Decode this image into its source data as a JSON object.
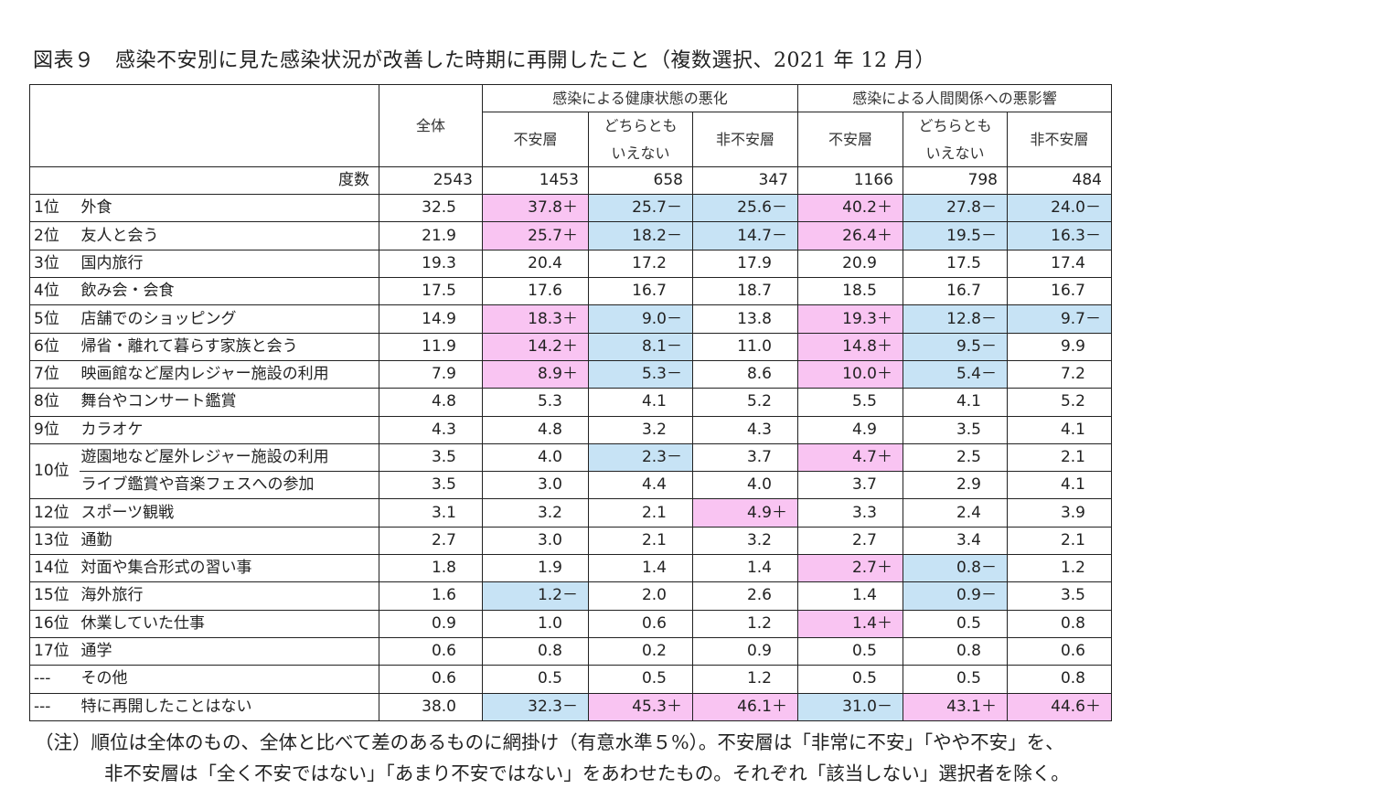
{
  "title": "図表９　感染不安別に見た感染状況が改善した時期に再開したこと（複数選択、2021 年 12 月）",
  "header": {
    "total_label": "全体",
    "group1": "感染による健康状態の悪化",
    "group2": "感染による人間関係への悪影響",
    "sub1": "不安層",
    "sub2_line1": "どちらとも",
    "sub2_line2": "いえない",
    "sub3": "非不安層",
    "freq_label": "度数",
    "freq": [
      "2543",
      "1453",
      "658",
      "347",
      "1166",
      "798",
      "484"
    ]
  },
  "rows": [
    {
      "rank": "1位",
      "item": "外食",
      "total": "32.5",
      "cells": [
        {
          "v": "37.8",
          "s": "＋"
        },
        {
          "v": "25.7",
          "s": "－"
        },
        {
          "v": "25.6",
          "s": "－"
        },
        {
          "v": "40.2",
          "s": "＋"
        },
        {
          "v": "27.8",
          "s": "－"
        },
        {
          "v": "24.0",
          "s": "－"
        }
      ]
    },
    {
      "rank": "2位",
      "item": "友人と会う",
      "total": "21.9",
      "cells": [
        {
          "v": "25.7",
          "s": "＋"
        },
        {
          "v": "18.2",
          "s": "－"
        },
        {
          "v": "14.7",
          "s": "－"
        },
        {
          "v": "26.4",
          "s": "＋"
        },
        {
          "v": "19.5",
          "s": "－"
        },
        {
          "v": "16.3",
          "s": "－"
        }
      ]
    },
    {
      "rank": "3位",
      "item": "国内旅行",
      "total": "19.3",
      "cells": [
        {
          "v": "20.4",
          "s": ""
        },
        {
          "v": "17.2",
          "s": ""
        },
        {
          "v": "17.9",
          "s": ""
        },
        {
          "v": "20.9",
          "s": ""
        },
        {
          "v": "17.5",
          "s": ""
        },
        {
          "v": "17.4",
          "s": ""
        }
      ]
    },
    {
      "rank": "4位",
      "item": "飲み会・会食",
      "total": "17.5",
      "cells": [
        {
          "v": "17.6",
          "s": ""
        },
        {
          "v": "16.7",
          "s": ""
        },
        {
          "v": "18.7",
          "s": ""
        },
        {
          "v": "18.5",
          "s": ""
        },
        {
          "v": "16.7",
          "s": ""
        },
        {
          "v": "16.7",
          "s": ""
        }
      ]
    },
    {
      "rank": "5位",
      "item": "店舗でのショッピング",
      "total": "14.9",
      "cells": [
        {
          "v": "18.3",
          "s": "＋"
        },
        {
          "v": "9.0",
          "s": "－"
        },
        {
          "v": "13.8",
          "s": ""
        },
        {
          "v": "19.3",
          "s": "＋"
        },
        {
          "v": "12.8",
          "s": "－"
        },
        {
          "v": "9.7",
          "s": "－"
        }
      ]
    },
    {
      "rank": "6位",
      "item": "帰省・離れて暮らす家族と会う",
      "total": "11.9",
      "cells": [
        {
          "v": "14.2",
          "s": "＋"
        },
        {
          "v": "8.1",
          "s": "－"
        },
        {
          "v": "11.0",
          "s": ""
        },
        {
          "v": "14.8",
          "s": "＋"
        },
        {
          "v": "9.5",
          "s": "－"
        },
        {
          "v": "9.9",
          "s": ""
        }
      ]
    },
    {
      "rank": "7位",
      "item": "映画館など屋内レジャー施設の利用",
      "total": "7.9",
      "cells": [
        {
          "v": "8.9",
          "s": "＋"
        },
        {
          "v": "5.3",
          "s": "－"
        },
        {
          "v": "8.6",
          "s": ""
        },
        {
          "v": "10.0",
          "s": "＋"
        },
        {
          "v": "5.4",
          "s": "－"
        },
        {
          "v": "7.2",
          "s": ""
        }
      ]
    },
    {
      "rank": "8位",
      "item": "舞台やコンサート鑑賞",
      "total": "4.8",
      "cells": [
        {
          "v": "5.3",
          "s": ""
        },
        {
          "v": "4.1",
          "s": ""
        },
        {
          "v": "5.2",
          "s": ""
        },
        {
          "v": "5.5",
          "s": ""
        },
        {
          "v": "4.1",
          "s": ""
        },
        {
          "v": "5.2",
          "s": ""
        }
      ]
    },
    {
      "rank": "9位",
      "item": "カラオケ",
      "total": "4.3",
      "cells": [
        {
          "v": "4.8",
          "s": ""
        },
        {
          "v": "3.2",
          "s": ""
        },
        {
          "v": "4.3",
          "s": ""
        },
        {
          "v": "4.9",
          "s": ""
        },
        {
          "v": "3.5",
          "s": ""
        },
        {
          "v": "4.1",
          "s": ""
        }
      ]
    },
    {
      "rank": "10位",
      "item": "遊園地など屋外レジャー施設の利用",
      "total": "3.5",
      "cells": [
        {
          "v": "4.0",
          "s": ""
        },
        {
          "v": "2.3",
          "s": "－"
        },
        {
          "v": "3.7",
          "s": ""
        },
        {
          "v": "4.7",
          "s": "＋"
        },
        {
          "v": "2.5",
          "s": ""
        },
        {
          "v": "2.1",
          "s": ""
        }
      ]
    },
    {
      "rank": "",
      "item": "ライブ鑑賞や音楽フェスへの参加",
      "total": "3.5",
      "cells": [
        {
          "v": "3.0",
          "s": ""
        },
        {
          "v": "4.4",
          "s": ""
        },
        {
          "v": "4.0",
          "s": ""
        },
        {
          "v": "3.7",
          "s": ""
        },
        {
          "v": "2.9",
          "s": ""
        },
        {
          "v": "4.1",
          "s": ""
        }
      ]
    },
    {
      "rank": "12位",
      "item": "スポーツ観戦",
      "total": "3.1",
      "cells": [
        {
          "v": "3.2",
          "s": ""
        },
        {
          "v": "2.1",
          "s": ""
        },
        {
          "v": "4.9",
          "s": "＋"
        },
        {
          "v": "3.3",
          "s": ""
        },
        {
          "v": "2.4",
          "s": ""
        },
        {
          "v": "3.9",
          "s": ""
        }
      ]
    },
    {
      "rank": "13位",
      "item": "通勤",
      "total": "2.7",
      "cells": [
        {
          "v": "3.0",
          "s": ""
        },
        {
          "v": "2.1",
          "s": ""
        },
        {
          "v": "3.2",
          "s": ""
        },
        {
          "v": "2.7",
          "s": ""
        },
        {
          "v": "3.4",
          "s": ""
        },
        {
          "v": "2.1",
          "s": ""
        }
      ]
    },
    {
      "rank": "14位",
      "item": "対面や集合形式の習い事",
      "total": "1.8",
      "cells": [
        {
          "v": "1.9",
          "s": ""
        },
        {
          "v": "1.4",
          "s": ""
        },
        {
          "v": "1.4",
          "s": ""
        },
        {
          "v": "2.7",
          "s": "＋"
        },
        {
          "v": "0.8",
          "s": "－"
        },
        {
          "v": "1.2",
          "s": ""
        }
      ]
    },
    {
      "rank": "15位",
      "item": "海外旅行",
      "total": "1.6",
      "cells": [
        {
          "v": "1.2",
          "s": "－"
        },
        {
          "v": "2.0",
          "s": ""
        },
        {
          "v": "2.6",
          "s": ""
        },
        {
          "v": "1.4",
          "s": ""
        },
        {
          "v": "0.9",
          "s": "－"
        },
        {
          "v": "3.5",
          "s": ""
        }
      ]
    },
    {
      "rank": "16位",
      "item": "休業していた仕事",
      "total": "0.9",
      "cells": [
        {
          "v": "1.0",
          "s": ""
        },
        {
          "v": "0.6",
          "s": ""
        },
        {
          "v": "1.2",
          "s": ""
        },
        {
          "v": "1.4",
          "s": "＋"
        },
        {
          "v": "0.5",
          "s": ""
        },
        {
          "v": "0.8",
          "s": ""
        }
      ]
    },
    {
      "rank": "17位",
      "item": "通学",
      "total": "0.6",
      "cells": [
        {
          "v": "0.8",
          "s": ""
        },
        {
          "v": "0.2",
          "s": ""
        },
        {
          "v": "0.9",
          "s": ""
        },
        {
          "v": "0.5",
          "s": ""
        },
        {
          "v": "0.8",
          "s": ""
        },
        {
          "v": "0.6",
          "s": ""
        }
      ]
    },
    {
      "rank": "---",
      "item": "その他",
      "total": "0.6",
      "cells": [
        {
          "v": "0.5",
          "s": ""
        },
        {
          "v": "0.5",
          "s": ""
        },
        {
          "v": "1.2",
          "s": ""
        },
        {
          "v": "0.5",
          "s": ""
        },
        {
          "v": "0.5",
          "s": ""
        },
        {
          "v": "0.8",
          "s": ""
        }
      ]
    },
    {
      "rank": "---",
      "item": "特に再開したことはない",
      "total": "38.0",
      "cells": [
        {
          "v": "32.3",
          "s": "－"
        },
        {
          "v": "45.3",
          "s": "＋"
        },
        {
          "v": "46.1",
          "s": "＋"
        },
        {
          "v": "31.0",
          "s": "－"
        },
        {
          "v": "43.1",
          "s": "＋"
        },
        {
          "v": "44.6",
          "s": "＋"
        }
      ]
    }
  ],
  "colors": {
    "positive": "#f9c4f2",
    "negative": "#c7e3f5"
  },
  "note": {
    "line1": "（注）順位は全体のもの、全体と比べて差のあるものに網掛け（有意水準５%）。不安層は「非常に不安」「やや不安」を、",
    "line2": "非不安層は「全く不安ではない」「あまり不安ではない」をあわせたもの。それぞれ「該当しない」選択者を除く。"
  }
}
